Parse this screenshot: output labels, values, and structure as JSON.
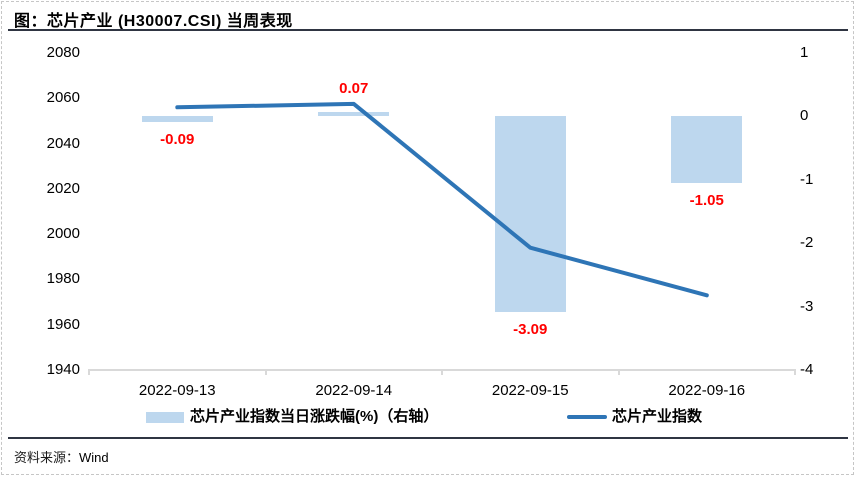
{
  "header": {
    "title": "图：芯片产业 (H30007.CSI) 当周表现"
  },
  "footer": {
    "source_label": "资料来源：",
    "source_value": "Wind"
  },
  "colors": {
    "bar_fill": "#BDD7EE",
    "line": "#2E75B6",
    "data_label": "#FF0000",
    "axis_line": "#D9D9D9",
    "rule": "#2F3542"
  },
  "chart_data": {
    "type": "combo",
    "categories": [
      "2022-09-13",
      "2022-09-14",
      "2022-09-15",
      "2022-09-16"
    ],
    "series": [
      {
        "name": "芯片产业指数当日涨跌幅(%)（右轴）",
        "type": "bar",
        "axis": "right",
        "values": [
          -0.09,
          0.07,
          -3.09,
          -1.05
        ],
        "data_labels": [
          "-0.09",
          "0.07",
          "-3.09",
          "-1.05"
        ],
        "color": "#BDD7EE",
        "data_label_color": "#FF0000"
      },
      {
        "name": "芯片产业指数",
        "type": "line",
        "axis": "left",
        "values": [
          2056,
          2057.5,
          1994,
          1973
        ],
        "color": "#2E75B6"
      }
    ],
    "left_axis": {
      "min": 1940,
      "max": 2080,
      "tick_step": 20,
      "ticks": [
        2080,
        2060,
        2040,
        2020,
        2000,
        1980,
        1960,
        1940
      ]
    },
    "right_axis": {
      "min": -4,
      "max": 1,
      "tick_step": 1,
      "ticks": [
        1,
        0,
        -1,
        -2,
        -3,
        -4
      ]
    },
    "grid": false,
    "legend_position": "bottom"
  }
}
